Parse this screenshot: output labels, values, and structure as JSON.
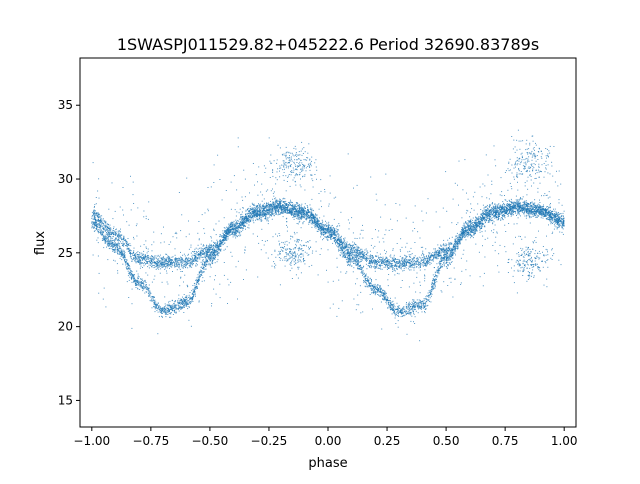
{
  "chart_data": {
    "type": "scatter",
    "title": "1SWASPJ011529.82+045222.6 Period 32690.83789s",
    "xlabel": "phase",
    "ylabel": "flux",
    "xlim": [
      -1.05,
      1.05
    ],
    "ylim": [
      13.2,
      38.2
    ],
    "xticks": [
      -1.0,
      -0.75,
      -0.5,
      -0.25,
      0.0,
      0.25,
      0.5,
      0.75,
      1.0
    ],
    "xtick_labels": [
      "−1.00",
      "−0.75",
      "−0.50",
      "−0.25",
      "0.00",
      "0.25",
      "0.50",
      "0.75",
      "1.00"
    ],
    "yticks": [
      15,
      20,
      25,
      30,
      35
    ],
    "ytick_labels": [
      "15",
      "20",
      "25",
      "30",
      "35"
    ],
    "grid": false,
    "marker_color": "#1f77b4",
    "series": [
      {
        "description_of_bands": "folded light curve, phase-duplicated",
        "upper_band": {
          "x": [
            -1.0,
            -0.9,
            -0.8,
            -0.7,
            -0.6,
            -0.5,
            -0.4,
            -0.3,
            -0.2,
            -0.1,
            0.0,
            0.1,
            0.2,
            0.3,
            0.4,
            0.5,
            0.6,
            0.7,
            0.8,
            0.9,
            1.0
          ],
          "y": [
            27.6,
            26.2,
            24.6,
            24.3,
            24.4,
            25.2,
            26.5,
            27.6,
            28.0,
            27.6,
            26.6,
            25.2,
            24.4,
            24.3,
            24.4,
            25.2,
            26.5,
            27.6,
            28.0,
            27.8,
            27.2
          ]
        },
        "lower_band": {
          "x": [
            -1.0,
            -0.9,
            -0.8,
            -0.7,
            -0.6,
            -0.5,
            -0.4,
            -0.3,
            -0.2,
            -0.1,
            0.0,
            0.1,
            0.2,
            0.3,
            0.4,
            0.5,
            0.6,
            0.7,
            0.8,
            0.9,
            1.0
          ],
          "y": [
            27.0,
            25.4,
            23.0,
            21.1,
            21.6,
            24.6,
            26.8,
            27.9,
            28.2,
            27.8,
            26.3,
            24.6,
            22.6,
            21.0,
            21.5,
            24.6,
            26.8,
            27.9,
            28.2,
            27.9,
            27.0
          ]
        },
        "scatter_clusters": [
          {
            "x": -0.15,
            "y": 31.0
          },
          {
            "x": 0.85,
            "y": 31.2
          },
          {
            "x": -0.15,
            "y": 25.0
          },
          {
            "x": 0.85,
            "y": 24.5
          }
        ]
      }
    ]
  }
}
